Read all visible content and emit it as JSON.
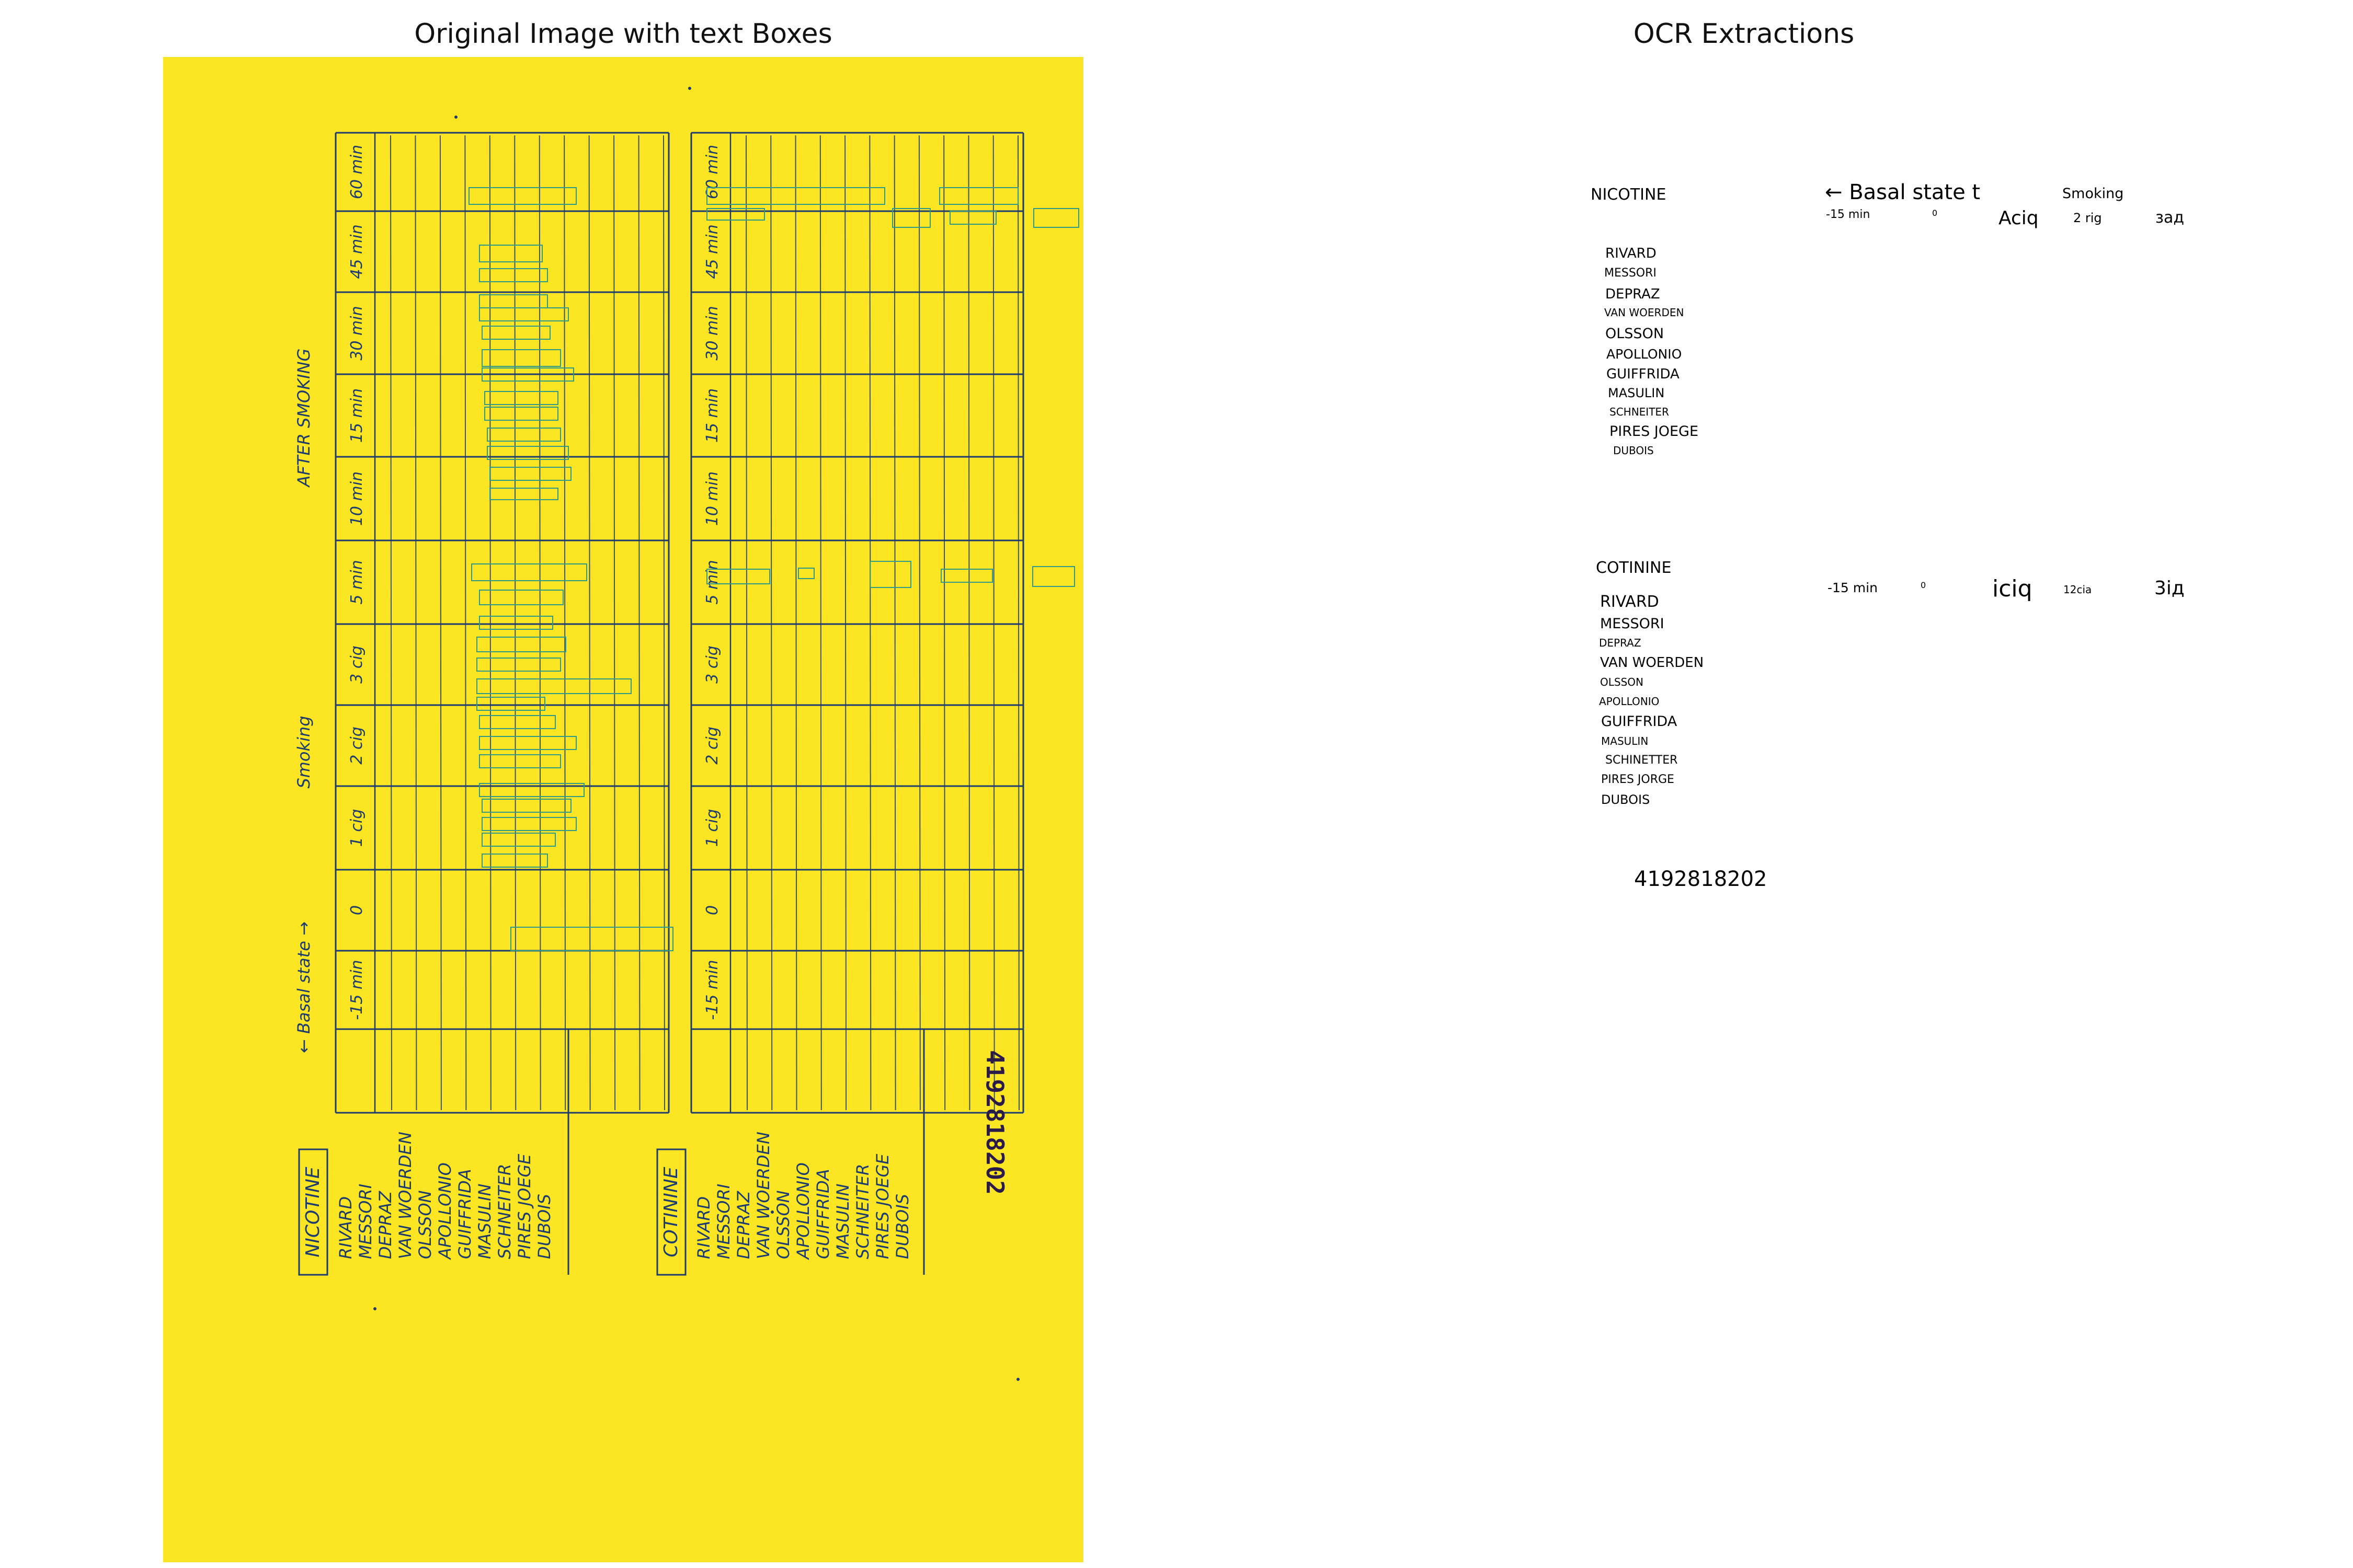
{
  "panels": {
    "left_title": "Original Image with text Boxes",
    "right_title": "OCR Extractions"
  },
  "scan": {
    "background_color": "#fce624",
    "ink_color": "#1c3b6e",
    "box_color": "#2f9a8a",
    "stamp_number": "4192818202",
    "nicotine_label": "NICOTINE",
    "cotinine_label": "COTININE",
    "names": [
      "RIVARD",
      "MESSORI",
      "DEPRAZ",
      "VAN WOERDEN",
      "OLSSON",
      "APOLLONIO",
      "GUIFFRIDA",
      "MASULIN",
      "SCHNEITER",
      "PIRES JOEGE",
      "DUBOIS"
    ],
    "column_headers": [
      "-15 min",
      "0",
      "1 cig",
      "2 cig",
      "3 cig",
      "5 min",
      "10 min",
      "15 min",
      "30 min",
      "45 min",
      "60 min"
    ],
    "phase_labels": {
      "basal": "← Basal state →",
      "smoking": "Smoking",
      "after": "AFTER SMOKING"
    }
  },
  "ocr": {
    "nicotine": {
      "title": "NICOTINE",
      "header_basal": "← Basal state t",
      "header_smoking": "Smoking",
      "col_minus15": "-15 min",
      "col_zero": "0",
      "col_aciq": "Aciq",
      "col_2rig": "2 rig",
      "col_zad": "зад",
      "names": [
        "RIVARD",
        "MESSORI",
        "DEPRAZ",
        "VAN WOERDEN",
        "OLSSON",
        "APOLLONIO",
        "GUIFFRIDA",
        "MASULIN",
        "SCHNEITER",
        "PIRES JOEGE",
        "DUBOIS"
      ]
    },
    "cotinine": {
      "title": "COTININE",
      "col_minus15": "-15 min",
      "col_zero": "0",
      "col_iciq": "iciq",
      "col_12cia": "12cia",
      "col_3id": "3iд",
      "names": [
        "RIVARD",
        "MESSORI",
        "DEPRAZ",
        "VAN WOERDEN",
        "OLSSON",
        "APOLLONIO",
        "GUIFFRIDA",
        "MASULIN",
        "SCHINETTER",
        "PIRES JORGE",
        "DUBOIS"
      ]
    },
    "doc_number": "4192818202"
  }
}
